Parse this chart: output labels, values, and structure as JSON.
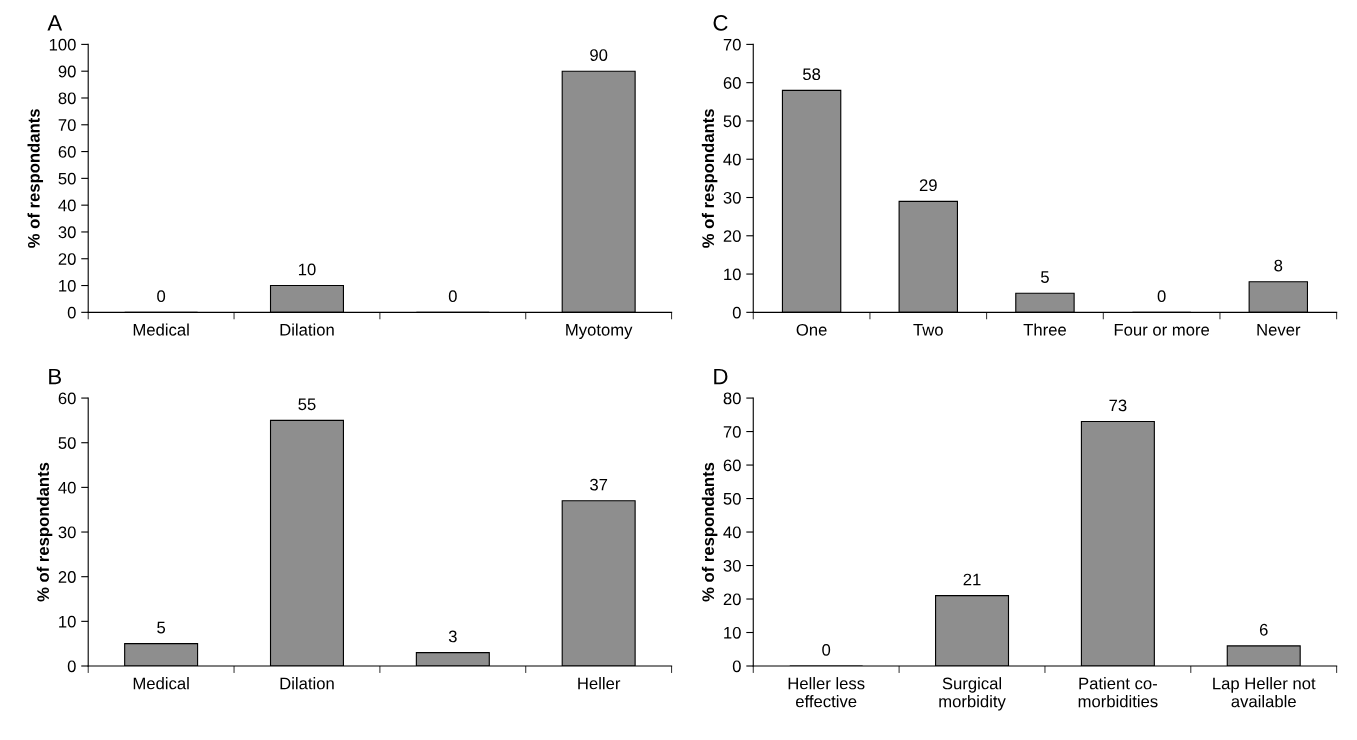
{
  "chart_data": [
    {
      "type": "bar",
      "title": "A",
      "ylabel": "% of respondants",
      "categories": [
        "Medical",
        "Dilation",
        null,
        "Myotomy"
      ],
      "values": [
        0,
        10,
        0,
        90
      ],
      "color": "#8e8e8e",
      "ylim": [
        0,
        100
      ],
      "yticks": [
        0,
        10,
        20,
        30,
        40,
        50,
        60,
        70,
        80,
        90,
        100
      ],
      "data_labels": true,
      "grid": false,
      "legend": false
    },
    {
      "type": "bar",
      "title": "C",
      "ylabel": "% of respondants",
      "categories": [
        "One",
        "Two",
        "Three",
        "Four or more",
        "Never"
      ],
      "values": [
        58,
        29,
        5,
        0,
        8
      ],
      "color": "#8e8e8e",
      "ylim": [
        0,
        70
      ],
      "yticks": [
        0,
        10,
        20,
        30,
        40,
        50,
        60,
        70
      ],
      "data_labels": true,
      "grid": false,
      "legend": false
    },
    {
      "type": "bar",
      "title": "B",
      "ylabel": "% of respondants",
      "categories": [
        "Medical",
        "Dilation",
        null,
        "Heller"
      ],
      "values": [
        5,
        55,
        3,
        37
      ],
      "color": "#8e8e8e",
      "ylim": [
        0,
        60
      ],
      "yticks": [
        0,
        10,
        20,
        30,
        40,
        50,
        60
      ],
      "data_labels": true,
      "grid": false,
      "legend": false
    },
    {
      "type": "bar",
      "title": "D",
      "ylabel": "% of respondants",
      "categories": [
        "Heller less\neffective",
        "Surgical\nmorbidity",
        "Patient co-\nmorbidities",
        "Lap Heller not\navailable"
      ],
      "values": [
        0,
        21,
        73,
        6
      ],
      "color": "#8e8e8e",
      "ylim": [
        0,
        80
      ],
      "yticks": [
        0,
        10,
        20,
        30,
        40,
        50,
        60,
        70,
        80
      ],
      "data_labels": true,
      "grid": false,
      "legend": false
    }
  ]
}
